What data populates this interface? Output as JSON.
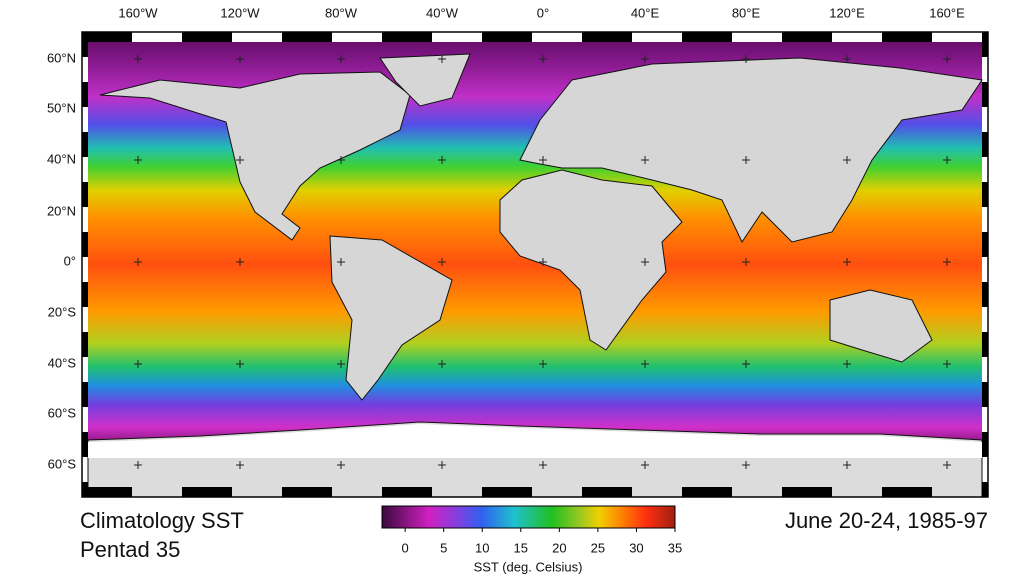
{
  "map": {
    "longitude_labels": [
      "160°W",
      "120°W",
      "80°W",
      "40°W",
      "0°",
      "40°E",
      "80°E",
      "120°E",
      "160°E"
    ],
    "latitude_labels": [
      "60°N",
      "50°N",
      "40°N",
      "20°N",
      "0°",
      "20°S",
      "40°S",
      "60°S",
      "60°S"
    ]
  },
  "title": {
    "line1": "Climatology SST",
    "line2": "Pentad 35",
    "period": "June 20-24, 1985-97"
  },
  "colorbar": {
    "lim": [
      -3,
      35
    ],
    "ticks": [
      0,
      5,
      10,
      15,
      20,
      25,
      30,
      35
    ],
    "label": "SST (deg. Celsius)"
  }
}
